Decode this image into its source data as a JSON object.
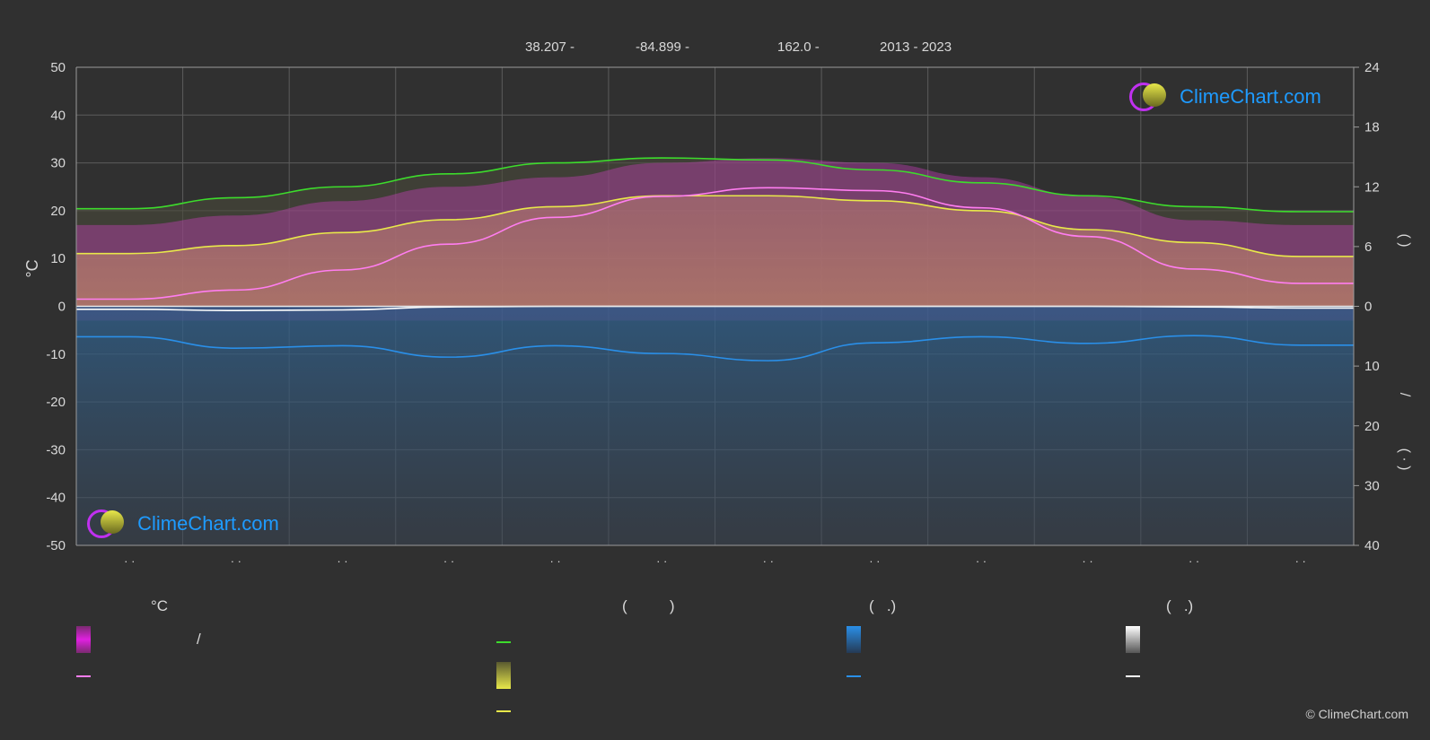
{
  "header": {
    "lat": "38.207 -",
    "lon": "-84.899 -",
    "elev": "162.0 -",
    "years": "2013 - 2023"
  },
  "logo_text": "ClimeChart.com",
  "copyright": "© ClimeChart.com",
  "legend": {
    "temp_head": "°C",
    "sun_head": "(          )",
    "rain_head": "(   .)",
    "snow_head": "(   .)",
    "slash": "/"
  },
  "colors": {
    "background": "#303030",
    "daylight": "#3ddc2c",
    "sunshine": "#e8e84a",
    "temp_mean": "#ff7df0",
    "temp_band": "#e040d0",
    "precip": "#2a8fe8",
    "snow": "#ffffff"
  },
  "chart_data": {
    "type": "line",
    "left_axis": {
      "label": "°C",
      "ylim": [
        -50,
        50
      ],
      "ticks": [
        "50",
        "40",
        "30",
        "20",
        "10",
        "0",
        "-10",
        "-20",
        "-30",
        "-40",
        "-50"
      ]
    },
    "right_axis_top": {
      "ylim": [
        0,
        24
      ],
      "ticks": [
        "24",
        "18",
        "12",
        "6",
        "0"
      ]
    },
    "right_axis_bottom": {
      "ylim": [
        0,
        40
      ],
      "ticks": [
        "0",
        "10",
        "20",
        "30",
        "40"
      ]
    },
    "right_label_parts": [
      "(   )",
      "/",
      "(  ·  )"
    ],
    "x_months": 12,
    "x_tick_labels": [
      "· ·",
      "· ·",
      "· ·",
      "· ·",
      "· ·",
      "· ·",
      "· ·",
      "· ·",
      "· ·",
      "· ·",
      "· ·",
      "· ·"
    ],
    "series": [
      {
        "key": "daylight",
        "axis": "hours",
        "values": [
          9.8,
          10.9,
          12.0,
          13.3,
          14.4,
          14.9,
          14.7,
          13.7,
          12.4,
          11.1,
          10.0,
          9.5
        ]
      },
      {
        "key": "sunshine",
        "axis": "hours",
        "values": [
          5.3,
          6.1,
          7.4,
          8.7,
          10.0,
          11.1,
          11.1,
          10.6,
          9.6,
          7.7,
          6.4,
          5.0
        ]
      },
      {
        "key": "temp_mean",
        "axis": "celsius",
        "values": [
          1.5,
          3.4,
          7.6,
          13.0,
          18.6,
          23.0,
          24.8,
          24.2,
          20.6,
          14.6,
          7.8,
          4.8
        ]
      },
      {
        "key": "precip",
        "axis": "mm",
        "values": [
          5.1,
          7.0,
          6.6,
          8.5,
          6.6,
          7.9,
          9.1,
          6.1,
          5.1,
          6.2,
          4.9,
          6.5
        ]
      },
      {
        "key": "snow",
        "axis": "mm",
        "values": [
          0.5,
          0.7,
          0.6,
          0.1,
          0,
          0,
          0,
          0,
          0,
          0,
          0.1,
          0.3
        ]
      }
    ],
    "temp_band_top": [
      17,
      19,
      22,
      25,
      27,
      30,
      31,
      30,
      27,
      23,
      18,
      17
    ],
    "grid": true
  }
}
